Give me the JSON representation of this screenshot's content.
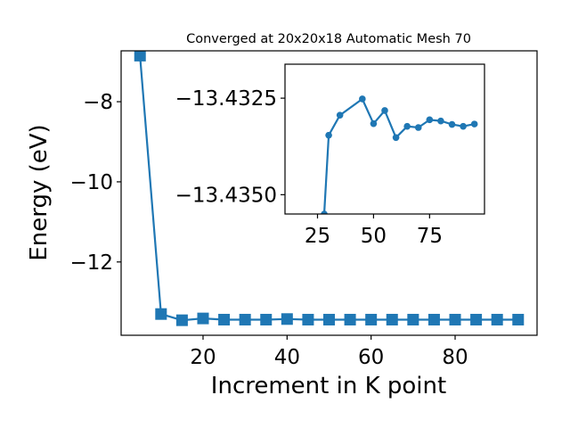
{
  "chart_data": [
    {
      "type": "line",
      "title": "Converged at 20x20x18 Automatic Mesh 70",
      "xlabel": "Increment in K point",
      "ylabel": "Energy (eV)",
      "xlim": [
        0.5,
        99.5
      ],
      "ylim": [
        -13.83,
        -6.73
      ],
      "xticks": [
        20,
        40,
        60,
        80
      ],
      "yticks": [
        -12,
        -10,
        -8
      ],
      "ytick_labels": [
        "−12",
        "−10",
        "−8"
      ],
      "grid": false,
      "marker": "square",
      "color": "#1f77b4",
      "series": [
        {
          "x": [
            5,
            10,
            15,
            20,
            25,
            30,
            35,
            40,
            45,
            50,
            55,
            60,
            65,
            70,
            75,
            80,
            85,
            90,
            95
          ],
          "y": [
            -6.85,
            -13.3,
            -13.455,
            -13.41,
            -13.44,
            -13.44,
            -13.44,
            -13.425,
            -13.44,
            -13.44,
            -13.44,
            -13.44,
            -13.44,
            -13.44,
            -13.44,
            -13.44,
            -13.44,
            -13.44,
            -13.44
          ]
        }
      ]
    },
    {
      "type": "line",
      "inset": true,
      "xlim": [
        10.5,
        99.5
      ],
      "ylim": [
        -13.4355,
        -13.43162
      ],
      "xticks": [
        25,
        50,
        75
      ],
      "yticks": [
        -13.435,
        -13.4325
      ],
      "ytick_labels": [
        "−13.4350",
        "−13.4325"
      ],
      "grid": false,
      "marker": "circle",
      "color": "#1f77b4",
      "series": [
        {
          "x": [
            28,
            30,
            35,
            45,
            50,
            55,
            60,
            65,
            70,
            75,
            80,
            85,
            90,
            95
          ],
          "y": [
            -13.4355,
            -13.43346,
            -13.43294,
            -13.43252,
            -13.43316,
            -13.43282,
            -13.43352,
            -13.43323,
            -13.43326,
            -13.43306,
            -13.43309,
            -13.43318,
            -13.43323,
            -13.43317
          ]
        }
      ]
    }
  ]
}
